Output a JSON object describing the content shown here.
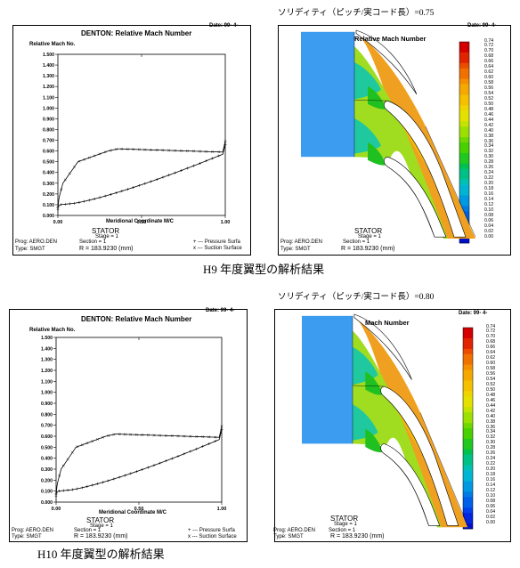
{
  "solidity_labels": [
    "ソリディティ（ピッチ/実コード長）=0.75",
    "ソリディティ（ピッチ/実コード長）=0.80"
  ],
  "captions": [
    "H9 年度翼型の解析結果",
    "H10 年度翼型の解析結果"
  ],
  "mach_plots": [
    {
      "title": "DENTON: Relative Mach Number",
      "date": "Date: 99- 4-",
      "ylabel": "Relative Mach No.",
      "xlabel": "Meridional Coordinate M/C",
      "yticks": [
        "1.500",
        "1.400",
        "1.300",
        "1.200",
        "1.100",
        "1.000",
        "0.900",
        "0.800",
        "0.700",
        "0.600",
        "0.500",
        "0.400",
        "0.300",
        "0.200",
        "0.100",
        "0.000"
      ],
      "xticks": [
        "0.00",
        "0.50",
        "1.00"
      ],
      "legend": [
        "Pressure Surfa",
        "Suction Surface"
      ],
      "footer_stator": "STATOR",
      "footer_stage": "Stage =   1",
      "footer_prog": "Prog: AERO.DEN",
      "footer_section": "Section =   1",
      "footer_type": "Type: SMGT",
      "footer_r": "R    =  183.9230  (mm)"
    },
    {
      "title": "DENTON: Relative Mach Number",
      "date": "Date: 99- 4-",
      "ylabel": "Relative Mach No.",
      "xlabel": "Meridional Coordinate M/C",
      "yticks": [
        "1.500",
        "1.400",
        "1.300",
        "1.200",
        "1.100",
        "1.000",
        "0.900",
        "0.800",
        "0.700",
        "0.600",
        "0.500",
        "0.400",
        "0.300",
        "0.200",
        "0.100",
        "0.000"
      ],
      "xticks": [
        "0.00",
        "0.50",
        "1.00"
      ],
      "legend": [
        "Pressure Surfa",
        "Suction Surface"
      ],
      "footer_stator": "STATOR",
      "footer_stage": "Stage =   1",
      "footer_prog": "Prog: AERO.DEN",
      "footer_section": "Section =   1",
      "footer_type": "Type: SMGT",
      "footer_r": "R    =  183.9230  (mm)"
    }
  ],
  "contour_plots": [
    {
      "title": "Relative Mach Number",
      "date": "Date: 99- 4-",
      "scale": [
        "0.74",
        "0.72",
        "0.70",
        "0.68",
        "0.66",
        "0.64",
        "0.62",
        "0.60",
        "0.58",
        "0.56",
        "0.54",
        "0.52",
        "0.50",
        "0.48",
        "0.46",
        "0.44",
        "0.42",
        "0.40",
        "0.38",
        "0.36",
        "0.34",
        "0.32",
        "0.30",
        "0.28",
        "0.26",
        "0.24",
        "0.22",
        "0.20",
        "0.18",
        "0.16",
        "0.14",
        "0.12",
        "0.10",
        "0.08",
        "0.06",
        "0.04",
        "0.02",
        "0.00"
      ],
      "footer_stator": "STATOR",
      "footer_stage": "Stage =   1",
      "footer_prog": "Prog: AERO.DEN",
      "footer_section": "Section =   1",
      "footer_type": "Type: SMGT",
      "footer_r": "R    =  183.9230  (mm)"
    },
    {
      "title": "Mach Number",
      "date": "Date: 99- 4-",
      "scale": [
        "0.74",
        "0.72",
        "0.70",
        "0.68",
        "0.66",
        "0.64",
        "0.62",
        "0.60",
        "0.58",
        "0.56",
        "0.54",
        "0.52",
        "0.50",
        "0.48",
        "0.46",
        "0.44",
        "0.42",
        "0.40",
        "0.38",
        "0.36",
        "0.34",
        "0.32",
        "0.30",
        "0.28",
        "0.26",
        "0.24",
        "0.22",
        "0.20",
        "0.18",
        "0.16",
        "0.14",
        "0.12",
        "0.10",
        "0.08",
        "0.06",
        "0.04",
        "0.02",
        "0.00"
      ],
      "footer_stator": "STATOR",
      "footer_stage": "Stage =   1",
      "footer_prog": "Prog: AERO.DEN",
      "footer_section": "Section =   1",
      "footer_type": "Type: SMGT",
      "footer_r": "R    =  183.9230  (mm)"
    }
  ]
}
